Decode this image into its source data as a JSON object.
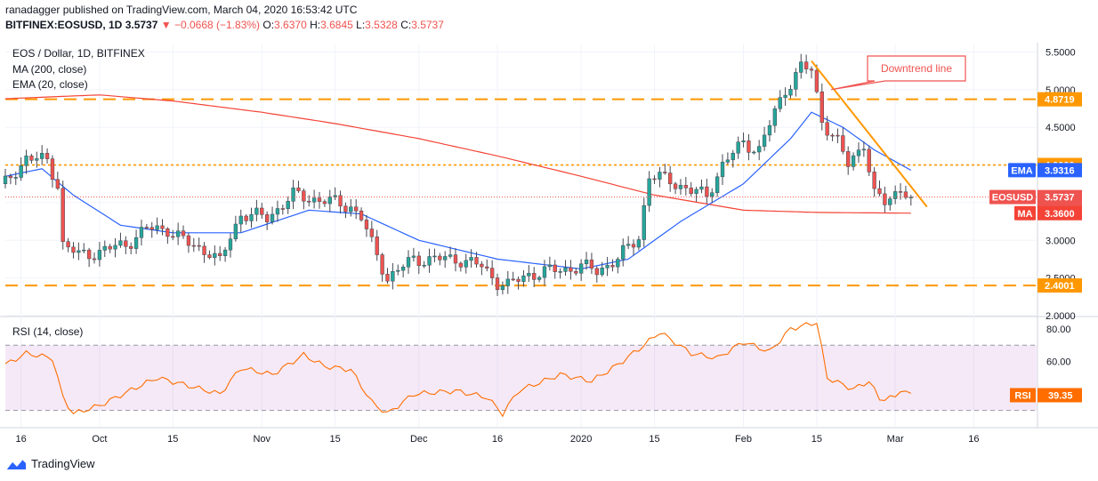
{
  "header": {
    "publisher": "ranadagger published on TradingView.com, March 04, 2020 16:53:42 UTC",
    "symbol": "BITFINEX:EOSUSD, 1D",
    "price": "3.5737",
    "change": "▼ −0.0668 (−1.83%)",
    "ohlc": [
      {
        "label": "O:",
        "value": "3.6370"
      },
      {
        "label": "H:",
        "value": "3.6845"
      },
      {
        "label": "L:",
        "value": "3.5328"
      },
      {
        "label": "C:",
        "value": "3.5737"
      }
    ]
  },
  "legend": {
    "title": "EOS / Dollar, 1D, BITFINEX",
    "ma": "MA (200, close)",
    "ema": "EMA (20, close)"
  },
  "rsi_title": "RSI (14, close)",
  "annotation": "Downtrend line",
  "branding": "TradingView",
  "colors": {
    "up": "#26a69a",
    "down": "#ef5350",
    "ma": "#f44336",
    "ema": "#2962ff",
    "rsi": "#ff6d00",
    "level": "#ff9800",
    "trend": "#ff9800",
    "grid": "#f0f3fa"
  },
  "chart_data": {
    "type": "candlestick",
    "price_axis": {
      "ticks": [
        "5.5000",
        "5.0000",
        "4.5000",
        "4.0000",
        "3.5000",
        "3.0000",
        "2.5000",
        "2.0000"
      ],
      "tick_values": [
        5.5,
        5.0,
        4.5,
        4.0,
        3.5,
        3.0,
        2.5,
        2.0
      ],
      "range": [
        2.0,
        5.6
      ]
    },
    "x_axis": {
      "ticks": [
        "16",
        "Oct",
        "15",
        "Nov",
        "15",
        "Dec",
        "16",
        "2020",
        "15",
        "Feb",
        "15",
        "Mar",
        "16"
      ],
      "tick_dates": [
        "2019-09-16",
        "2019-10-01",
        "2019-10-15",
        "2019-11-01",
        "2019-11-15",
        "2019-12-01",
        "2019-12-16",
        "2020-01-01",
        "2020-01-15",
        "2020-02-01",
        "2020-02-15",
        "2020-03-01",
        "2020-03-16"
      ],
      "range": [
        "2019-09-13",
        "2020-03-28"
      ]
    },
    "levels": [
      {
        "value": 4.8719,
        "label": "4.8719",
        "style": "dashed"
      },
      {
        "value": 4.0,
        "label": "4.0000",
        "style": "dotted"
      },
      {
        "value": 2.4001,
        "label": "2.4001",
        "style": "dashed"
      }
    ],
    "price_labels": [
      {
        "name": "EMA",
        "value": 3.9316,
        "label": "3.9316",
        "color": "#2962ff"
      },
      {
        "name": "EOSUSD",
        "value": 3.5737,
        "label": "3.5737",
        "sub": "07:06:20",
        "color": "#ef5350"
      },
      {
        "name": "MA",
        "value": 3.36,
        "label": "3.3600",
        "color": "#f44336"
      }
    ],
    "trendline": {
      "start": [
        "2020-02-14",
        5.38
      ],
      "end": [
        "2020-03-04",
        3.35
      ]
    },
    "ohlc_anchors": [
      [
        "2019-09-13",
        3.75
      ],
      [
        "2019-09-17",
        4.1
      ],
      [
        "2019-09-21",
        4.05
      ],
      [
        "2019-09-23",
        3.75
      ],
      [
        "2019-09-24",
        2.95
      ],
      [
        "2019-09-27",
        2.8
      ],
      [
        "2019-10-01",
        2.85
      ],
      [
        "2019-10-06",
        2.95
      ],
      [
        "2019-10-10",
        3.15
      ],
      [
        "2019-10-14",
        3.15
      ],
      [
        "2019-10-18",
        2.95
      ],
      [
        "2019-10-22",
        2.85
      ],
      [
        "2019-10-24",
        2.7
      ],
      [
        "2019-10-26",
        3.05
      ],
      [
        "2019-10-28",
        3.35
      ],
      [
        "2019-11-02",
        3.3
      ],
      [
        "2019-11-07",
        3.6
      ],
      [
        "2019-11-11",
        3.55
      ],
      [
        "2019-11-15",
        3.5
      ],
      [
        "2019-11-18",
        3.45
      ],
      [
        "2019-11-20",
        3.3
      ],
      [
        "2019-11-22",
        2.95
      ],
      [
        "2019-11-25",
        2.5
      ],
      [
        "2019-11-30",
        2.75
      ],
      [
        "2019-12-04",
        2.75
      ],
      [
        "2019-12-09",
        2.75
      ],
      [
        "2019-12-13",
        2.65
      ],
      [
        "2019-12-16",
        2.45
      ],
      [
        "2019-12-18",
        2.4
      ],
      [
        "2019-12-22",
        2.55
      ],
      [
        "2019-12-27",
        2.6
      ],
      [
        "2020-01-01",
        2.65
      ],
      [
        "2020-01-04",
        2.6
      ],
      [
        "2020-01-08",
        2.75
      ],
      [
        "2020-01-12",
        3.05
      ],
      [
        "2020-01-14",
        3.85
      ],
      [
        "2020-01-18",
        3.8
      ],
      [
        "2020-01-22",
        3.65
      ],
      [
        "2020-01-25",
        3.6
      ],
      [
        "2020-01-28",
        4.0
      ],
      [
        "2020-02-01",
        4.3
      ],
      [
        "2020-02-04",
        4.2
      ],
      [
        "2020-02-07",
        4.7
      ],
      [
        "2020-02-09",
        5.0
      ],
      [
        "2020-02-12",
        5.3
      ],
      [
        "2020-02-14",
        5.25
      ],
      [
        "2020-02-16",
        4.6
      ],
      [
        "2020-02-19",
        4.3
      ],
      [
        "2020-02-21",
        4.0
      ],
      [
        "2020-02-24",
        4.3
      ],
      [
        "2020-02-26",
        3.6
      ],
      [
        "2020-02-28",
        3.5
      ],
      [
        "2020-03-02",
        3.7
      ],
      [
        "2020-03-04",
        3.57
      ]
    ],
    "ma200_anchors": [
      [
        "2019-09-13",
        4.88
      ],
      [
        "2019-10-01",
        4.93
      ],
      [
        "2019-10-15",
        4.85
      ],
      [
        "2019-11-01",
        4.7
      ],
      [
        "2019-11-15",
        4.55
      ],
      [
        "2019-12-01",
        4.35
      ],
      [
        "2019-12-16",
        4.12
      ],
      [
        "2020-01-01",
        3.85
      ],
      [
        "2020-01-15",
        3.6
      ],
      [
        "2020-02-01",
        3.4
      ],
      [
        "2020-02-15",
        3.37
      ],
      [
        "2020-03-04",
        3.36
      ]
    ],
    "ema20_anchors": [
      [
        "2019-09-13",
        3.85
      ],
      [
        "2019-09-20",
        3.95
      ],
      [
        "2019-09-26",
        3.6
      ],
      [
        "2019-10-05",
        3.2
      ],
      [
        "2019-10-15",
        3.1
      ],
      [
        "2019-10-28",
        3.1
      ],
      [
        "2019-11-10",
        3.4
      ],
      [
        "2019-11-20",
        3.35
      ],
      [
        "2019-12-01",
        3.0
      ],
      [
        "2019-12-16",
        2.75
      ],
      [
        "2020-01-01",
        2.62
      ],
      [
        "2020-01-10",
        2.75
      ],
      [
        "2020-01-20",
        3.25
      ],
      [
        "2020-02-01",
        3.75
      ],
      [
        "2020-02-10",
        4.35
      ],
      [
        "2020-02-14",
        4.7
      ],
      [
        "2020-02-20",
        4.5
      ],
      [
        "2020-02-26",
        4.2
      ],
      [
        "2020-03-04",
        3.93
      ]
    ],
    "rsi": {
      "levels": [
        80,
        60,
        40
      ],
      "band": [
        30,
        70
      ],
      "ticks": [
        "80.00",
        "60.00"
      ],
      "range": [
        20,
        87
      ],
      "current": {
        "value": 39.35,
        "label": "39.35"
      },
      "anchors": [
        [
          "2019-09-13",
          58
        ],
        [
          "2019-09-17",
          65
        ],
        [
          "2019-09-22",
          62
        ],
        [
          "2019-09-24",
          38
        ],
        [
          "2019-09-26",
          28
        ],
        [
          "2019-10-01",
          33
        ],
        [
          "2019-10-08",
          44
        ],
        [
          "2019-10-12",
          50
        ],
        [
          "2019-10-17",
          46
        ],
        [
          "2019-10-24",
          40
        ],
        [
          "2019-10-28",
          56
        ],
        [
          "2019-11-03",
          52
        ],
        [
          "2019-11-09",
          64
        ],
        [
          "2019-11-13",
          57
        ],
        [
          "2019-11-18",
          55
        ],
        [
          "2019-11-22",
          35
        ],
        [
          "2019-11-25",
          28
        ],
        [
          "2019-11-30",
          40
        ],
        [
          "2019-12-08",
          42
        ],
        [
          "2019-12-14",
          38
        ],
        [
          "2019-12-17",
          28
        ],
        [
          "2019-12-20",
          42
        ],
        [
          "2019-12-28",
          52
        ],
        [
          "2020-01-03",
          48
        ],
        [
          "2020-01-08",
          58
        ],
        [
          "2020-01-13",
          70
        ],
        [
          "2020-01-16",
          78
        ],
        [
          "2020-01-22",
          65
        ],
        [
          "2020-01-27",
          62
        ],
        [
          "2020-02-01",
          72
        ],
        [
          "2020-02-06",
          66
        ],
        [
          "2020-02-10",
          80
        ],
        [
          "2020-02-15",
          84
        ],
        [
          "2020-02-17",
          50
        ],
        [
          "2020-02-22",
          43
        ],
        [
          "2020-02-25",
          48
        ],
        [
          "2020-02-27",
          37
        ],
        [
          "2020-03-01",
          38
        ],
        [
          "2020-03-02",
          43
        ],
        [
          "2020-03-04",
          39.35
        ]
      ]
    }
  }
}
